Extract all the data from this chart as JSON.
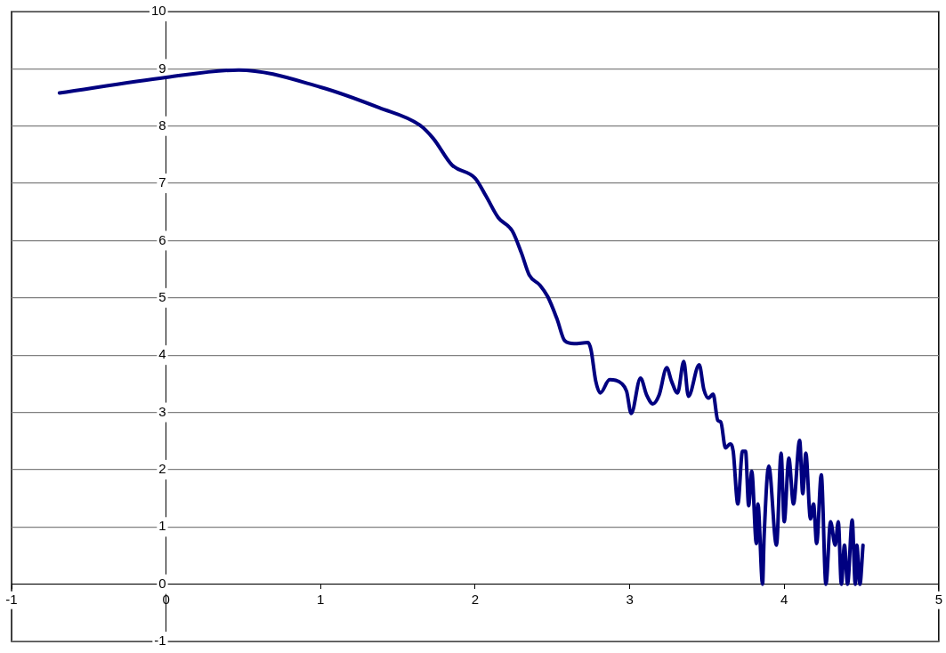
{
  "chart_data": {
    "type": "line",
    "grid": "y",
    "marker": "none",
    "line_style": "solid",
    "xlim": [
      -1,
      5
    ],
    "xticks": [
      -1,
      0,
      1,
      2,
      3,
      4,
      5
    ],
    "ylim": [
      -1,
      10
    ],
    "yticks": [
      -1,
      0,
      1,
      2,
      3,
      4,
      5,
      6,
      7,
      8,
      9,
      10
    ],
    "series": [
      {
        "color": "#000080",
        "x": [
          -0.69,
          0,
          0.47,
          1,
          1.38,
          1.64,
          1.73,
          1.85,
          2.0,
          2.07,
          2.15,
          2.24,
          2.3,
          2.35,
          2.42,
          2.47,
          2.53,
          2.58,
          2.64,
          2.73,
          2.75,
          2.78,
          2.81,
          2.87,
          2.95,
          2.98,
          3.01,
          3.07,
          3.11,
          3.15,
          3.19,
          3.24,
          3.27,
          3.31,
          3.35,
          3.38,
          3.45,
          3.48,
          3.51,
          3.54,
          3.57,
          3.59,
          3.62,
          3.65,
          3.67,
          3.7,
          3.73,
          3.75,
          3.77,
          3.79,
          3.82,
          3.83,
          3.86,
          3.87,
          3.9,
          3.95,
          3.98,
          4.0,
          4.03,
          4.06,
          4.1,
          4.12,
          4.14,
          4.17,
          4.19,
          4.21,
          4.24,
          4.27,
          4.3,
          4.33,
          4.35,
          4.37,
          4.39,
          4.41,
          4.44,
          4.46,
          4.47,
          4.49,
          4.51
        ],
        "values": [
          8.58,
          8.85,
          8.98,
          8.68,
          8.32,
          8.02,
          7.78,
          7.32,
          7.09,
          6.78,
          6.4,
          6.17,
          5.78,
          5.4,
          5.22,
          5.02,
          4.63,
          4.25,
          4.2,
          4.22,
          4.09,
          3.55,
          3.34,
          3.57,
          3.5,
          3.37,
          2.98,
          3.6,
          3.3,
          3.15,
          3.3,
          3.78,
          3.55,
          3.34,
          3.89,
          3.28,
          3.83,
          3.4,
          3.25,
          3.32,
          2.86,
          2.83,
          2.38,
          2.45,
          2.32,
          1.4,
          2.32,
          2.32,
          1.37,
          1.97,
          0.71,
          1.4,
          0,
          0.83,
          2.06,
          0.68,
          2.29,
          1.09,
          2.2,
          1.4,
          2.51,
          1.58,
          2.29,
          1.14,
          1.4,
          0.71,
          1.91,
          0,
          1.09,
          0.68,
          1.09,
          0,
          0.68,
          0,
          1.12,
          0,
          0.68,
          0,
          0.68
        ]
      }
    ]
  }
}
